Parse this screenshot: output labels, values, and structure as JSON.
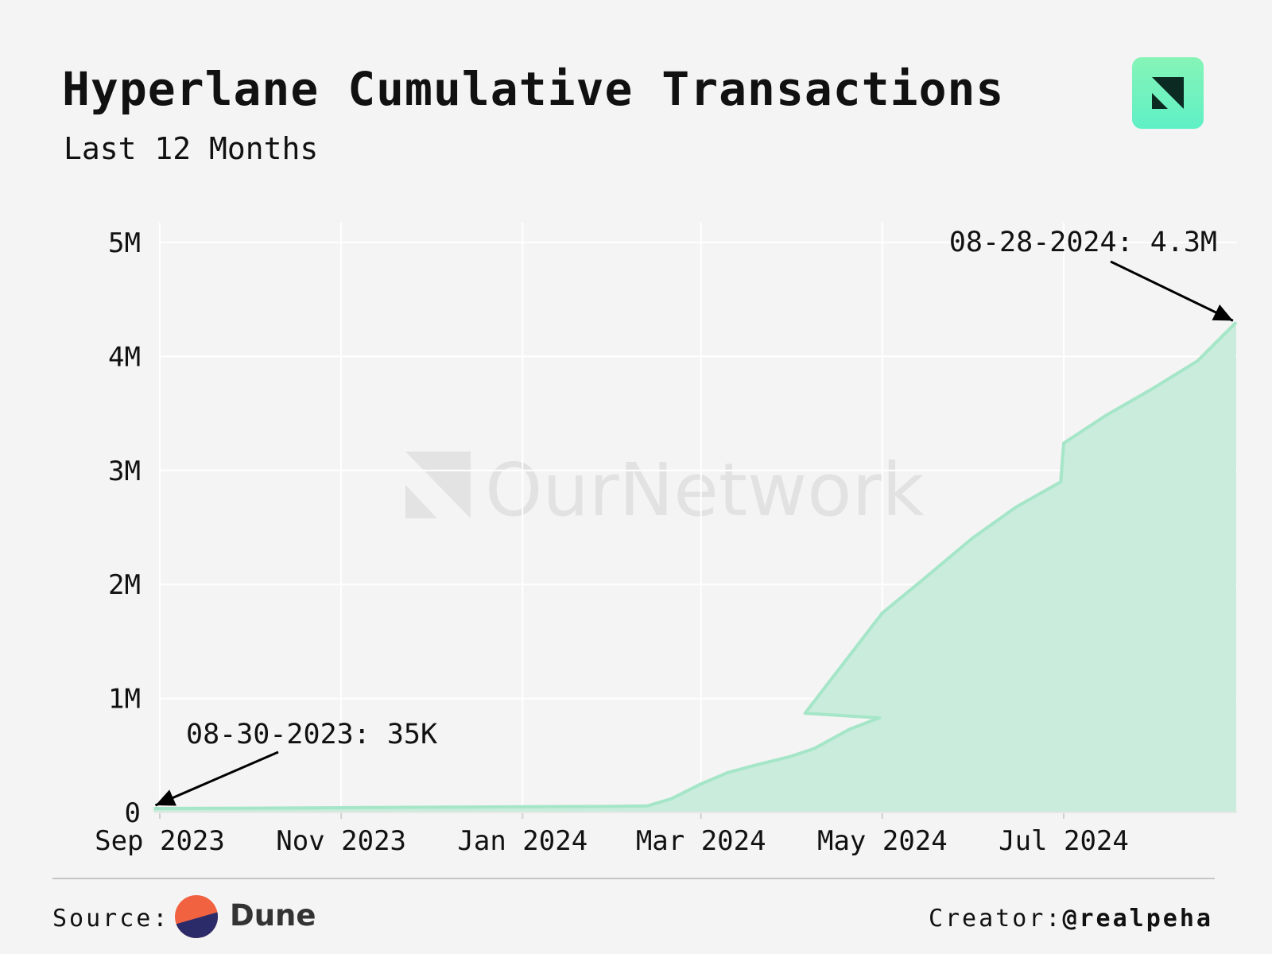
{
  "header": {
    "title": "Hyperlane Cumulative Transactions",
    "subtitle": "Last 12 Months",
    "brand_logo_icon": "ournetwork-logo-icon"
  },
  "watermark": {
    "text": "OurNetwork"
  },
  "chart_data": {
    "type": "area",
    "title": "Hyperlane Cumulative Transactions",
    "subtitle": "Last 12 Months",
    "xlabel": "",
    "ylabel": "",
    "x_range": [
      "2023-08-30",
      "2024-08-28"
    ],
    "ylim": [
      0,
      5000000
    ],
    "y_ticks": [
      {
        "value": 0,
        "label": "0"
      },
      {
        "value": 1000000,
        "label": "1M"
      },
      {
        "value": 2000000,
        "label": "2M"
      },
      {
        "value": 3000000,
        "label": "3M"
      },
      {
        "value": 4000000,
        "label": "4M"
      },
      {
        "value": 5000000,
        "label": "5M"
      }
    ],
    "x_ticks": [
      {
        "date": "2023-09-01",
        "label": "Sep 2023"
      },
      {
        "date": "2023-11-01",
        "label": "Nov 2023"
      },
      {
        "date": "2024-01-01",
        "label": "Jan 2024"
      },
      {
        "date": "2024-03-01",
        "label": "Mar 2024"
      },
      {
        "date": "2024-05-01",
        "label": "May 2024"
      },
      {
        "date": "2024-07-01",
        "label": "Jul 2024"
      }
    ],
    "grid": true,
    "series": [
      {
        "color": "#a6e6c8",
        "fill": "#c9ecdc",
        "points": [
          [
            "2023-08-30",
            35000
          ],
          [
            "2023-09-30",
            38000
          ],
          [
            "2023-10-31",
            42000
          ],
          [
            "2023-11-30",
            46000
          ],
          [
            "2023-12-31",
            50000
          ],
          [
            "2024-01-31",
            54000
          ],
          [
            "2024-02-12",
            58000
          ],
          [
            "2024-02-20",
            120000
          ],
          [
            "2024-03-01",
            250000
          ],
          [
            "2024-03-10",
            350000
          ],
          [
            "2024-03-20",
            420000
          ],
          [
            "2024-03-31",
            490000
          ],
          [
            "2024-04-08",
            560000
          ],
          [
            "2024-04-20",
            730000
          ],
          [
            "2024-04-30",
            830000
          ],
          [
            "2024-04-05",
            870000
          ],
          [
            "2024-05-01",
            1750000
          ],
          [
            "2024-05-15",
            2050000
          ],
          [
            "2024-05-31",
            2400000
          ],
          [
            "2024-06-15",
            2680000
          ],
          [
            "2024-06-30",
            2900000
          ],
          [
            "2024-07-01",
            3240000
          ],
          [
            "2024-07-15",
            3480000
          ],
          [
            "2024-07-31",
            3720000
          ],
          [
            "2024-08-15",
            3960000
          ],
          [
            "2024-08-28",
            4300000
          ]
        ]
      }
    ],
    "annotations": [
      {
        "text": "08-30-2023: 35K",
        "date": "2023-08-30",
        "value": 35000
      },
      {
        "text": "08-28-2024: 4.3M",
        "date": "2024-08-28",
        "value": 4300000
      }
    ]
  },
  "footer": {
    "source_label": "Source:",
    "source_name": "Dune",
    "creator_label": "Creator:",
    "creator_handle": "@realpeha"
  }
}
